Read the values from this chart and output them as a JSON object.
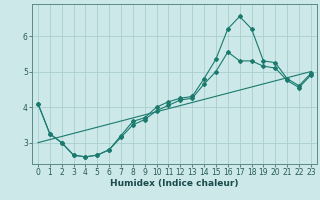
{
  "xlabel": "Humidex (Indice chaleur)",
  "bg_color": "#cce8e8",
  "grid_color": "#aad0d0",
  "line_color": "#1a7a6e",
  "xlim": [
    -0.5,
    23.5
  ],
  "ylim": [
    2.4,
    6.9
  ],
  "yticks": [
    3,
    4,
    5,
    6
  ],
  "xticks": [
    0,
    1,
    2,
    3,
    4,
    5,
    6,
    7,
    8,
    9,
    10,
    11,
    12,
    13,
    14,
    15,
    16,
    17,
    18,
    19,
    20,
    21,
    22,
    23
  ],
  "line1": {
    "x": [
      0,
      1,
      2,
      3,
      4,
      5,
      6,
      7,
      8,
      9,
      10,
      11,
      12,
      13,
      14,
      15,
      16,
      17,
      18,
      19,
      20,
      21,
      22,
      23
    ],
    "y": [
      4.1,
      3.25,
      3.0,
      2.65,
      2.6,
      2.65,
      2.8,
      3.2,
      3.6,
      3.7,
      4.0,
      4.15,
      4.25,
      4.3,
      4.8,
      5.35,
      6.2,
      6.55,
      6.2,
      5.3,
      5.25,
      4.8,
      4.6,
      4.95
    ]
  },
  "line2": {
    "x": [
      0,
      1,
      2,
      3,
      4,
      5,
      6,
      7,
      8,
      9,
      10,
      11,
      12,
      13,
      14,
      15,
      16,
      17,
      18,
      19,
      20,
      21,
      22,
      23
    ],
    "y": [
      4.1,
      3.25,
      3.0,
      2.65,
      2.6,
      2.65,
      2.8,
      3.15,
      3.5,
      3.65,
      3.9,
      4.05,
      4.2,
      4.25,
      4.65,
      5.0,
      5.55,
      5.3,
      5.3,
      5.15,
      5.1,
      4.75,
      4.55,
      4.9
    ]
  },
  "line3": {
    "x": [
      0,
      23
    ],
    "y": [
      3.0,
      5.0
    ]
  }
}
